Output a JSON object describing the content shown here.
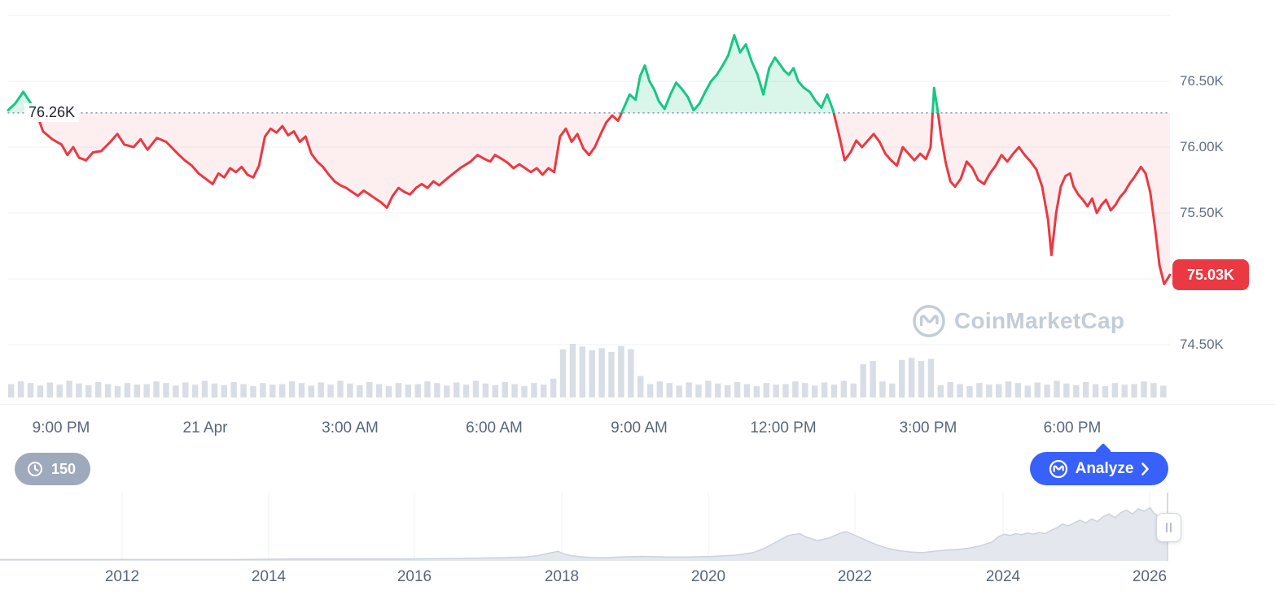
{
  "watermark": {
    "text": "CoinMarketCap"
  },
  "controls": {
    "history_badge": "150",
    "analyze_label": "Analyze"
  },
  "chart_data": {
    "type": "line",
    "unit": "K",
    "ylim": [
      74.3,
      77.0
    ],
    "baseline": {
      "value": 76.26,
      "label": "76.26K"
    },
    "last_price": {
      "value": 75.03,
      "label": "75.03K"
    },
    "y_axis_ticks": [
      {
        "value": 76.5,
        "label": "76.50K"
      },
      {
        "value": 76.0,
        "label": "76.00K"
      },
      {
        "value": 75.5,
        "label": "75.50K"
      },
      {
        "value": 74.5,
        "label": "74.50K"
      }
    ],
    "gridline_values": [
      77.0,
      76.5,
      76.0,
      75.5,
      75.0,
      74.5
    ],
    "x_ticks": [
      {
        "label": "9:00 PM",
        "pos": 0.048
      },
      {
        "label": "21 Apr",
        "pos": 0.161
      },
      {
        "label": "3:00 AM",
        "pos": 0.2746
      },
      {
        "label": "6:00 AM",
        "pos": 0.3876
      },
      {
        "label": "9:00 AM",
        "pos": 0.5013
      },
      {
        "label": "12:00 PM",
        "pos": 0.6143
      },
      {
        "label": "3:00 PM",
        "pos": 0.728
      },
      {
        "label": "6:00 PM",
        "pos": 0.841
      }
    ],
    "price_series": [
      [
        0.0,
        76.28
      ],
      [
        0.006,
        76.33
      ],
      [
        0.013,
        76.42
      ],
      [
        0.019,
        76.34
      ],
      [
        0.024,
        76.27
      ],
      [
        0.03,
        76.12
      ],
      [
        0.038,
        76.06
      ],
      [
        0.046,
        76.02
      ],
      [
        0.051,
        75.94
      ],
      [
        0.056,
        76.0
      ],
      [
        0.061,
        75.92
      ],
      [
        0.067,
        75.9
      ],
      [
        0.073,
        75.96
      ],
      [
        0.08,
        75.97
      ],
      [
        0.088,
        76.04
      ],
      [
        0.094,
        76.1
      ],
      [
        0.1,
        76.02
      ],
      [
        0.108,
        76.0
      ],
      [
        0.114,
        76.06
      ],
      [
        0.12,
        75.98
      ],
      [
        0.128,
        76.07
      ],
      [
        0.136,
        76.04
      ],
      [
        0.146,
        75.95
      ],
      [
        0.152,
        75.9
      ],
      [
        0.158,
        75.86
      ],
      [
        0.164,
        75.8
      ],
      [
        0.17,
        75.76
      ],
      [
        0.176,
        75.72
      ],
      [
        0.181,
        75.8
      ],
      [
        0.186,
        75.77
      ],
      [
        0.191,
        75.84
      ],
      [
        0.196,
        75.81
      ],
      [
        0.201,
        75.85
      ],
      [
        0.206,
        75.79
      ],
      [
        0.211,
        75.77
      ],
      [
        0.216,
        75.86
      ],
      [
        0.221,
        76.08
      ],
      [
        0.226,
        76.14
      ],
      [
        0.231,
        76.11
      ],
      [
        0.236,
        76.16
      ],
      [
        0.241,
        76.09
      ],
      [
        0.246,
        76.12
      ],
      [
        0.251,
        76.04
      ],
      [
        0.256,
        76.08
      ],
      [
        0.261,
        75.95
      ],
      [
        0.266,
        75.89
      ],
      [
        0.271,
        75.85
      ],
      [
        0.276,
        75.79
      ],
      [
        0.281,
        75.74
      ],
      [
        0.286,
        75.71
      ],
      [
        0.291,
        75.69
      ],
      [
        0.296,
        75.66
      ],
      [
        0.301,
        75.63
      ],
      [
        0.306,
        75.67
      ],
      [
        0.311,
        75.64
      ],
      [
        0.316,
        75.61
      ],
      [
        0.321,
        75.58
      ],
      [
        0.326,
        75.54
      ],
      [
        0.331,
        75.63
      ],
      [
        0.336,
        75.69
      ],
      [
        0.341,
        75.66
      ],
      [
        0.346,
        75.64
      ],
      [
        0.351,
        75.69
      ],
      [
        0.356,
        75.72
      ],
      [
        0.361,
        75.69
      ],
      [
        0.366,
        75.74
      ],
      [
        0.371,
        75.71
      ],
      [
        0.379,
        75.77
      ],
      [
        0.389,
        75.84
      ],
      [
        0.398,
        75.89
      ],
      [
        0.404,
        75.94
      ],
      [
        0.41,
        75.91
      ],
      [
        0.415,
        75.89
      ],
      [
        0.419,
        75.94
      ],
      [
        0.425,
        75.91
      ],
      [
        0.43,
        75.88
      ],
      [
        0.435,
        75.84
      ],
      [
        0.44,
        75.87
      ],
      [
        0.445,
        75.84
      ],
      [
        0.45,
        75.81
      ],
      [
        0.455,
        75.84
      ],
      [
        0.46,
        75.79
      ],
      [
        0.465,
        75.84
      ],
      [
        0.47,
        75.81
      ],
      [
        0.475,
        76.08
      ],
      [
        0.48,
        76.14
      ],
      [
        0.485,
        76.04
      ],
      [
        0.49,
        76.1
      ],
      [
        0.495,
        75.99
      ],
      [
        0.5,
        75.94
      ],
      [
        0.505,
        76.0
      ],
      [
        0.51,
        76.1
      ],
      [
        0.515,
        76.19
      ],
      [
        0.52,
        76.24
      ],
      [
        0.525,
        76.2
      ],
      [
        0.53,
        76.3
      ],
      [
        0.535,
        76.4
      ],
      [
        0.54,
        76.36
      ],
      [
        0.544,
        76.54
      ],
      [
        0.548,
        76.62
      ],
      [
        0.552,
        76.5
      ],
      [
        0.556,
        76.44
      ],
      [
        0.56,
        76.35
      ],
      [
        0.565,
        76.29
      ],
      [
        0.57,
        76.4
      ],
      [
        0.575,
        76.49
      ],
      [
        0.58,
        76.44
      ],
      [
        0.585,
        76.38
      ],
      [
        0.59,
        76.28
      ],
      [
        0.595,
        76.33
      ],
      [
        0.6,
        76.42
      ],
      [
        0.605,
        76.5
      ],
      [
        0.61,
        76.55
      ],
      [
        0.615,
        76.62
      ],
      [
        0.62,
        76.7
      ],
      [
        0.625,
        76.85
      ],
      [
        0.63,
        76.72
      ],
      [
        0.635,
        76.78
      ],
      [
        0.64,
        76.65
      ],
      [
        0.645,
        76.55
      ],
      [
        0.65,
        76.4
      ],
      [
        0.655,
        76.6
      ],
      [
        0.66,
        76.68
      ],
      [
        0.665,
        76.62
      ],
      [
        0.668,
        76.58
      ],
      [
        0.672,
        76.55
      ],
      [
        0.676,
        76.6
      ],
      [
        0.68,
        76.5
      ],
      [
        0.685,
        76.45
      ],
      [
        0.69,
        76.42
      ],
      [
        0.695,
        76.35
      ],
      [
        0.7,
        76.3
      ],
      [
        0.705,
        76.4
      ],
      [
        0.71,
        76.28
      ],
      [
        0.715,
        76.1
      ],
      [
        0.72,
        75.9
      ],
      [
        0.725,
        75.96
      ],
      [
        0.73,
        76.05
      ],
      [
        0.735,
        76.0
      ],
      [
        0.74,
        76.05
      ],
      [
        0.745,
        76.1
      ],
      [
        0.75,
        76.04
      ],
      [
        0.755,
        75.95
      ],
      [
        0.76,
        75.9
      ],
      [
        0.765,
        75.86
      ],
      [
        0.77,
        76.0
      ],
      [
        0.775,
        75.95
      ],
      [
        0.78,
        75.9
      ],
      [
        0.785,
        75.95
      ],
      [
        0.79,
        75.91
      ],
      [
        0.794,
        76.0
      ],
      [
        0.797,
        76.45
      ],
      [
        0.8,
        76.28
      ],
      [
        0.803,
        76.08
      ],
      [
        0.807,
        75.88
      ],
      [
        0.811,
        75.74
      ],
      [
        0.815,
        75.7
      ],
      [
        0.82,
        75.76
      ],
      [
        0.825,
        75.89
      ],
      [
        0.83,
        75.84
      ],
      [
        0.835,
        75.75
      ],
      [
        0.84,
        75.72
      ],
      [
        0.845,
        75.8
      ],
      [
        0.85,
        75.86
      ],
      [
        0.855,
        75.94
      ],
      [
        0.86,
        75.89
      ],
      [
        0.865,
        75.95
      ],
      [
        0.87,
        76.0
      ],
      [
        0.875,
        75.94
      ],
      [
        0.88,
        75.89
      ],
      [
        0.885,
        75.83
      ],
      [
        0.89,
        75.7
      ],
      [
        0.895,
        75.45
      ],
      [
        0.898,
        75.18
      ],
      [
        0.902,
        75.5
      ],
      [
        0.906,
        75.7
      ],
      [
        0.91,
        75.78
      ],
      [
        0.914,
        75.8
      ],
      [
        0.917,
        75.7
      ],
      [
        0.921,
        75.64
      ],
      [
        0.925,
        75.6
      ],
      [
        0.929,
        75.55
      ],
      [
        0.933,
        75.61
      ],
      [
        0.937,
        75.5
      ],
      [
        0.941,
        75.56
      ],
      [
        0.945,
        75.6
      ],
      [
        0.949,
        75.52
      ],
      [
        0.953,
        75.56
      ],
      [
        0.957,
        75.62
      ],
      [
        0.961,
        75.66
      ],
      [
        0.965,
        75.72
      ],
      [
        0.97,
        75.78
      ],
      [
        0.975,
        75.85
      ],
      [
        0.979,
        75.8
      ],
      [
        0.983,
        75.66
      ],
      [
        0.987,
        75.4
      ],
      [
        0.991,
        75.1
      ],
      [
        0.995,
        74.96
      ],
      [
        1.0,
        75.03
      ]
    ],
    "volume_series": [
      0.25,
      0.3,
      0.27,
      0.22,
      0.28,
      0.24,
      0.31,
      0.26,
      0.23,
      0.29,
      0.25,
      0.21,
      0.27,
      0.24,
      0.25,
      0.3,
      0.27,
      0.22,
      0.28,
      0.24,
      0.31,
      0.26,
      0.23,
      0.29,
      0.25,
      0.21,
      0.27,
      0.24,
      0.25,
      0.3,
      0.27,
      0.22,
      0.28,
      0.24,
      0.31,
      0.26,
      0.23,
      0.29,
      0.25,
      0.21,
      0.27,
      0.24,
      0.25,
      0.3,
      0.27,
      0.22,
      0.28,
      0.24,
      0.31,
      0.26,
      0.23,
      0.29,
      0.25,
      0.21,
      0.27,
      0.24,
      0.35,
      0.9,
      1.0,
      0.95,
      0.88,
      0.92,
      0.85,
      0.96,
      0.9,
      0.4,
      0.25,
      0.3,
      0.27,
      0.22,
      0.28,
      0.24,
      0.31,
      0.26,
      0.23,
      0.29,
      0.25,
      0.21,
      0.27,
      0.24,
      0.25,
      0.3,
      0.27,
      0.22,
      0.28,
      0.24,
      0.31,
      0.26,
      0.62,
      0.68,
      0.3,
      0.26,
      0.7,
      0.74,
      0.68,
      0.72,
      0.23,
      0.29,
      0.25,
      0.21,
      0.27,
      0.24,
      0.25,
      0.3,
      0.27,
      0.22,
      0.28,
      0.24,
      0.31,
      0.26,
      0.23,
      0.29,
      0.25,
      0.21,
      0.27,
      0.24,
      0.25,
      0.3,
      0.27,
      0.22
    ],
    "navigator": {
      "year_ticks": [
        {
          "label": "2012",
          "pos": 0.0958
        },
        {
          "label": "2014",
          "pos": 0.2107
        },
        {
          "label": "2016",
          "pos": 0.325
        },
        {
          "label": "2018",
          "pos": 0.4406
        },
        {
          "label": "2020",
          "pos": 0.5556
        },
        {
          "label": "2022",
          "pos": 0.6705
        },
        {
          "label": "2024",
          "pos": 0.7868
        },
        {
          "label": "2026",
          "pos": 0.9017
        }
      ],
      "series": [
        [
          0.0,
          0.02
        ],
        [
          0.05,
          0.02
        ],
        [
          0.1,
          0.02
        ],
        [
          0.15,
          0.02
        ],
        [
          0.2,
          0.02
        ],
        [
          0.25,
          0.03
        ],
        [
          0.3,
          0.03
        ],
        [
          0.35,
          0.03
        ],
        [
          0.4,
          0.04
        ],
        [
          0.43,
          0.05
        ],
        [
          0.45,
          0.06
        ],
        [
          0.46,
          0.08
        ],
        [
          0.47,
          0.12
        ],
        [
          0.478,
          0.15
        ],
        [
          0.483,
          0.11
        ],
        [
          0.49,
          0.08
        ],
        [
          0.5,
          0.06
        ],
        [
          0.51,
          0.05
        ],
        [
          0.52,
          0.05
        ],
        [
          0.53,
          0.06
        ],
        [
          0.55,
          0.07
        ],
        [
          0.57,
          0.06
        ],
        [
          0.59,
          0.06
        ],
        [
          0.61,
          0.07
        ],
        [
          0.63,
          0.09
        ],
        [
          0.645,
          0.13
        ],
        [
          0.655,
          0.2
        ],
        [
          0.665,
          0.3
        ],
        [
          0.675,
          0.4
        ],
        [
          0.685,
          0.43
        ],
        [
          0.69,
          0.38
        ],
        [
          0.7,
          0.32
        ],
        [
          0.71,
          0.36
        ],
        [
          0.72,
          0.44
        ],
        [
          0.725,
          0.46
        ],
        [
          0.73,
          0.42
        ],
        [
          0.74,
          0.34
        ],
        [
          0.75,
          0.26
        ],
        [
          0.76,
          0.2
        ],
        [
          0.77,
          0.16
        ],
        [
          0.78,
          0.14
        ],
        [
          0.79,
          0.13
        ],
        [
          0.8,
          0.15
        ],
        [
          0.81,
          0.17
        ],
        [
          0.82,
          0.18
        ],
        [
          0.83,
          0.2
        ],
        [
          0.84,
          0.24
        ],
        [
          0.85,
          0.3
        ],
        [
          0.855,
          0.38
        ],
        [
          0.86,
          0.42
        ],
        [
          0.865,
          0.4
        ],
        [
          0.87,
          0.43
        ],
        [
          0.875,
          0.41
        ],
        [
          0.88,
          0.44
        ],
        [
          0.885,
          0.42
        ],
        [
          0.89,
          0.45
        ],
        [
          0.895,
          0.43
        ],
        [
          0.9,
          0.48
        ],
        [
          0.905,
          0.52
        ],
        [
          0.91,
          0.58
        ],
        [
          0.915,
          0.55
        ],
        [
          0.92,
          0.6
        ],
        [
          0.925,
          0.64
        ],
        [
          0.93,
          0.6
        ],
        [
          0.935,
          0.66
        ],
        [
          0.94,
          0.62
        ],
        [
          0.945,
          0.7
        ],
        [
          0.95,
          0.74
        ],
        [
          0.955,
          0.68
        ],
        [
          0.96,
          0.76
        ],
        [
          0.965,
          0.8
        ],
        [
          0.97,
          0.74
        ],
        [
          0.975,
          0.82
        ],
        [
          0.98,
          0.78
        ],
        [
          0.985,
          0.84
        ],
        [
          0.988,
          0.76
        ],
        [
          0.992,
          0.7
        ],
        [
          1.0,
          0.62
        ]
      ]
    },
    "colors": {
      "up": "#16c784",
      "down": "#ea3943",
      "up_fill": "rgba(22,199,132,0.16)",
      "down_fill": "rgba(234,57,67,0.08)",
      "baseline": "#8a93a6",
      "grid": "#eff2f5",
      "volume": "#d8dde6",
      "nav_fill": "#e4e8ee",
      "nav_stroke": "#ccd2db",
      "axis_text": "#58667e"
    }
  }
}
